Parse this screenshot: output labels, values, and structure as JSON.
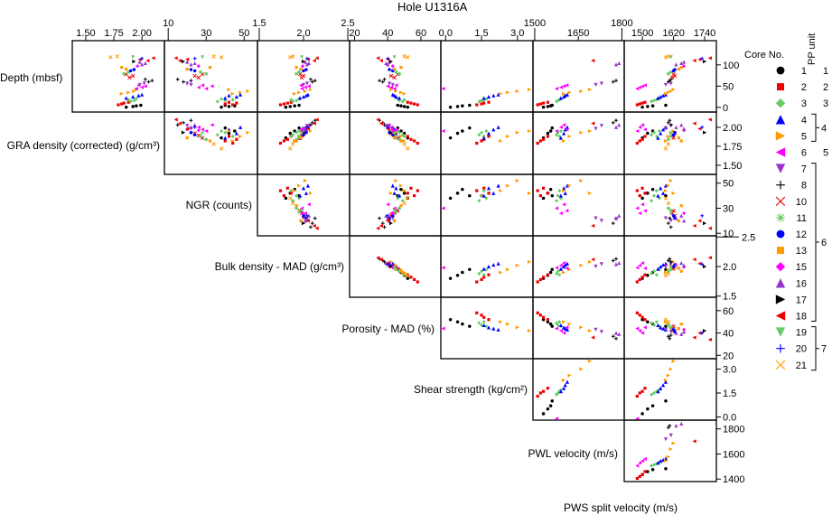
{
  "chart_data": {
    "type": "scatter",
    "title": "Hole U1316A",
    "xlabel_bottom": "PWS split velocity (m/s)",
    "grid": false,
    "legend_placement": "right",
    "variables": [
      {
        "key": "depth",
        "label": "Depth (mbsf)",
        "range": [
          -11,
          157
        ],
        "ticks": [
          "0",
          "50",
          "100"
        ]
      },
      {
        "key": "gra",
        "label": "GRA density (corrected) (g/cm³)",
        "range": [
          1.38,
          2.2
        ],
        "ticks": [
          "1.50",
          "1.75",
          "2.00"
        ]
      },
      {
        "key": "ngr",
        "label": "NGR (counts)",
        "range": [
          8,
          57
        ],
        "ticks": [
          "10",
          "30",
          "50"
        ]
      },
      {
        "key": "bulk",
        "label": "Bulk density - MAD (g/cm³)",
        "range": [
          1.48,
          2.52
        ],
        "ticks": [
          "1.5",
          "2.0",
          "2.5"
        ]
      },
      {
        "key": "por",
        "label": "Porosity - MAD (%)",
        "range": [
          17,
          72
        ],
        "ticks": [
          "20",
          "40",
          "60"
        ]
      },
      {
        "key": "shear",
        "label": "Shear strength (kg/cm²)",
        "range": [
          -0.2,
          3.65
        ],
        "ticks": [
          "0.0",
          "1.5",
          "3.0"
        ]
      },
      {
        "key": "pwl",
        "label": "PWL velocity (m/s)",
        "range": [
          1494,
          1808
        ],
        "ticks": [
          "1500",
          "1650",
          "1800"
        ],
        "right_ticks": [
          "1400",
          "1600",
          "1800"
        ],
        "right_range": [
          1380,
          1870
        ]
      },
      {
        "key": "pws",
        "label": "PWS split velocity (m/s)",
        "range": [
          1430,
          1785
        ],
        "ticks": [
          "1500",
          "1620",
          "1740"
        ]
      }
    ],
    "record_fields": [
      "core",
      "depth",
      "gra",
      "ngr",
      "bulk",
      "por",
      "shear",
      "pwl",
      "pws"
    ],
    "records": [
      [
        1,
        0.5,
        1.86,
        38,
        1.8,
        52,
        0.2,
        1530,
        1500
      ],
      [
        1,
        2,
        1.92,
        42,
        1.85,
        50,
        0.5,
        1545,
        1520
      ],
      [
        1,
        3.5,
        1.95,
        45,
        1.9,
        48,
        0.7,
        1555,
        1540
      ],
      [
        1,
        5,
        1.99,
        40,
        1.95,
        46,
        1.0,
        1560,
        1590
      ],
      [
        2,
        6,
        1.79,
        44,
        1.74,
        58,
        1.3,
        1510,
        1480
      ],
      [
        2,
        8,
        1.82,
        40,
        1.78,
        56,
        1.5,
        1520,
        1490
      ],
      [
        2,
        10,
        1.84,
        46,
        1.82,
        54,
        1.6,
        1530,
        1500
      ],
      [
        2,
        12,
        1.88,
        42,
        1.86,
        52,
        1.8,
        1545,
        1510
      ],
      [
        3,
        14,
        1.9,
        36,
        1.88,
        49,
        1.4,
        1575,
        1535
      ],
      [
        3,
        16,
        1.93,
        40,
        1.92,
        47,
        1.5,
        1580,
        1545
      ],
      [
        3,
        18,
        1.88,
        44,
        1.86,
        50,
        1.6,
        1585,
        1555
      ],
      [
        3,
        20,
        1.95,
        38,
        1.95,
        46,
        1.7,
        1590,
        1565
      ],
      [
        4,
        22,
        1.86,
        40,
        1.96,
        47,
        1.6,
        1590,
        1560
      ],
      [
        4,
        25,
        1.92,
        46,
        2.0,
        45,
        1.8,
        1600,
        1570
      ],
      [
        4,
        28,
        1.97,
        42,
        2.03,
        44,
        2.0,
        1605,
        1580
      ],
      [
        4,
        30,
        2.0,
        48,
        2.05,
        43,
        2.2,
        1612,
        1590
      ],
      [
        5,
        32,
        1.82,
        44,
        1.9,
        50,
        2.3,
        1600,
        1590
      ],
      [
        5,
        35,
        1.88,
        48,
        1.95,
        48,
        2.6,
        1620,
        1600
      ],
      [
        5,
        38,
        1.93,
        52,
        2.02,
        45,
        3.0,
        1660,
        1610
      ],
      [
        5,
        42,
        1.95,
        42,
        2.08,
        42,
        3.5,
        1690,
        1620
      ],
      [
        6,
        44,
        1.95,
        30,
        1.98,
        44,
        -0.1,
        1575,
        1480
      ],
      [
        6,
        47,
        2.0,
        26,
        2.02,
        42,
        null,
        1590,
        1490
      ],
      [
        6,
        50,
        2.03,
        33,
        2.06,
        40,
        null,
        1600,
        1500
      ],
      [
        6,
        52,
        1.97,
        28,
        1.97,
        45,
        null,
        1610,
        1510
      ],
      [
        7,
        53,
        1.98,
        22,
        2.0,
        43,
        null,
        1710,
        1590
      ],
      [
        7,
        56,
        2.02,
        20,
        2.04,
        41,
        null,
        1730,
        1610
      ],
      [
        8,
        60,
        2.06,
        18,
        2.1,
        37,
        null,
        1770,
        1600
      ],
      [
        8,
        63,
        2.09,
        22,
        2.13,
        35,
        null,
        1780,
        1605
      ],
      [
        8,
        66,
        2.03,
        15,
        2.08,
        38,
        null,
        null,
        1610
      ],
      [
        10,
        70,
        1.89,
        26,
        1.98,
        44,
        null,
        null,
        1615
      ],
      [
        10,
        74,
        1.92,
        24,
        2.0,
        42,
        null,
        null,
        1625
      ],
      [
        10,
        78,
        1.86,
        28,
        1.96,
        46,
        null,
        null,
        1620
      ],
      [
        11,
        79,
        1.84,
        30,
        1.92,
        47,
        null,
        null,
        1600
      ],
      [
        11,
        83,
        1.88,
        27,
        1.95,
        45,
        null,
        null,
        1610
      ],
      [
        12,
        86,
        1.9,
        24,
        2.0,
        43,
        null,
        null,
        1620
      ],
      [
        12,
        89,
        1.93,
        22,
        2.03,
        41,
        null,
        null,
        1625
      ],
      [
        13,
        90,
        1.86,
        20,
        1.97,
        44,
        null,
        null,
        1640
      ],
      [
        13,
        94,
        1.82,
        32,
        1.92,
        48,
        null,
        null,
        1650
      ],
      [
        15,
        97,
        1.96,
        26,
        1.99,
        43,
        null,
        null,
        1660
      ],
      [
        16,
        101,
        2.0,
        22,
        2.04,
        40,
        null,
        1780,
        1630
      ],
      [
        16,
        104,
        2.03,
        24,
        2.06,
        39,
        null,
        1790,
        1650
      ],
      [
        16,
        107,
        1.98,
        20,
        2.02,
        41,
        null,
        null,
        1660
      ],
      [
        17,
        108,
        1.93,
        18,
        2.0,
        42,
        null,
        null,
        1740
      ],
      [
        18,
        110,
        2.05,
        16,
        2.12,
        36,
        null,
        1700,
        1700
      ],
      [
        18,
        113,
        1.98,
        20,
        2.05,
        40,
        null,
        null,
        1720
      ],
      [
        18,
        116,
        2.1,
        14,
        2.15,
        34,
        null,
        null,
        1760
      ],
      [
        19,
        118,
        1.92,
        28,
        1.98,
        44,
        null,
        null,
        1610
      ],
      [
        20,
        115,
        2.0,
        24,
        2.04,
        40,
        null,
        null,
        1730
      ],
      [
        21,
        120,
        1.78,
        34,
        1.88,
        50,
        null,
        null,
        1600
      ],
      [
        21,
        118,
        1.72,
        38,
        1.85,
        52,
        null,
        null,
        1590
      ]
    ],
    "legend": {
      "title": "Core No.",
      "pp_title": "PP unit",
      "cores": [
        {
          "core": "1",
          "marker": "circle",
          "color": "#000000"
        },
        {
          "core": "2",
          "marker": "square",
          "color": "#ee0000"
        },
        {
          "core": "3",
          "marker": "diamond",
          "color": "#66cc66"
        },
        {
          "core": "4",
          "marker": "triangle-up",
          "color": "#0000ff"
        },
        {
          "core": "5",
          "marker": "triangle-right",
          "color": "#ff9900"
        },
        {
          "core": "6",
          "marker": "triangle-left",
          "color": "#ff00ff"
        },
        {
          "core": "7",
          "marker": "triangle-down",
          "color": "#9933cc"
        },
        {
          "core": "8",
          "marker": "plus",
          "color": "#000000"
        },
        {
          "core": "10",
          "marker": "x",
          "color": "#ee0000"
        },
        {
          "core": "11",
          "marker": "asterisk",
          "color": "#66cc66"
        },
        {
          "core": "12",
          "marker": "circle",
          "color": "#0000ff"
        },
        {
          "core": "13",
          "marker": "square",
          "color": "#ff9900"
        },
        {
          "core": "15",
          "marker": "diamond",
          "color": "#ff00ff"
        },
        {
          "core": "16",
          "marker": "triangle-up",
          "color": "#9933cc"
        },
        {
          "core": "17",
          "marker": "triangle-right",
          "color": "#000000"
        },
        {
          "core": "18",
          "marker": "triangle-left",
          "color": "#ee0000"
        },
        {
          "core": "19",
          "marker": "triangle-down",
          "color": "#66cc66"
        },
        {
          "core": "20",
          "marker": "plus",
          "color": "#0000ff"
        },
        {
          "core": "21",
          "marker": "x",
          "color": "#ff9900"
        }
      ],
      "pp_units": [
        {
          "unit": "1",
          "from": 0,
          "to": 0
        },
        {
          "unit": "2",
          "from": 1,
          "to": 1
        },
        {
          "unit": "3",
          "from": 2,
          "to": 2
        },
        {
          "unit": "4",
          "from": 3,
          "to": 4
        },
        {
          "unit": "5",
          "from": 5,
          "to": 5
        },
        {
          "unit": "6",
          "from": 6,
          "to": 15
        },
        {
          "unit": "7",
          "from": 16,
          "to": 18
        }
      ]
    }
  }
}
